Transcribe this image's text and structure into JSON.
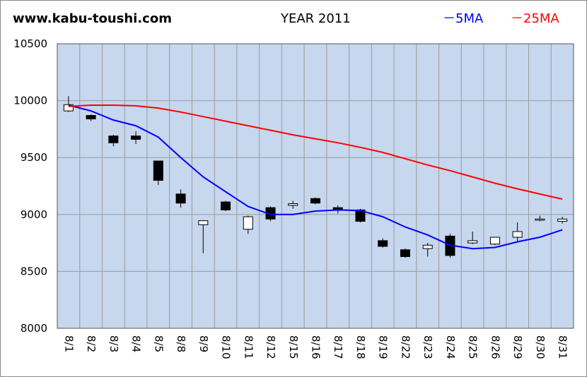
{
  "header": {
    "site": "www.kabu-toushi.com",
    "year_title": "YEAR 2011",
    "legend_5ma": "－5MA",
    "legend_25ma": "－25MA"
  },
  "colors": {
    "plot_bg": "#c6d7ee",
    "grid": "#9a9a9a",
    "ma5": "#0000ff",
    "ma25": "#ff0000",
    "up_body": "#ffffff",
    "down_body": "#000000"
  },
  "chart_data": {
    "type": "candlestick",
    "title": "YEAR 2011",
    "ylim": [
      8000,
      10500
    ],
    "yticks": [
      8000,
      8500,
      9000,
      9500,
      10000,
      10500
    ],
    "categories": [
      "8/1",
      "8/2",
      "8/3",
      "8/4",
      "8/5",
      "8/8",
      "8/9",
      "8/10",
      "8/11",
      "8/12",
      "8/15",
      "8/16",
      "8/17",
      "8/18",
      "8/19",
      "8/22",
      "8/23",
      "8/24",
      "8/25",
      "8/26",
      "8/29",
      "8/30",
      "8/31"
    ],
    "ohlc": [
      {
        "open": 9910,
        "high": 10040,
        "low": 9900,
        "close": 9965
      },
      {
        "open": 9870,
        "high": 9880,
        "low": 9820,
        "close": 9840
      },
      {
        "open": 9690,
        "high": 9700,
        "low": 9600,
        "close": 9630
      },
      {
        "open": 9690,
        "high": 9730,
        "low": 9620,
        "close": 9660
      },
      {
        "open": 9470,
        "high": 9470,
        "low": 9260,
        "close": 9300
      },
      {
        "open": 9180,
        "high": 9220,
        "low": 9060,
        "close": 9100
      },
      {
        "open": 8910,
        "high": 8950,
        "low": 8660,
        "close": 8945
      },
      {
        "open": 9110,
        "high": 9120,
        "low": 9030,
        "close": 9040
      },
      {
        "open": 8870,
        "high": 8990,
        "low": 8830,
        "close": 8980
      },
      {
        "open": 9060,
        "high": 9070,
        "low": 8940,
        "close": 8960
      },
      {
        "open": 9080,
        "high": 9120,
        "low": 9050,
        "close": 9095
      },
      {
        "open": 9140,
        "high": 9150,
        "low": 9090,
        "close": 9100
      },
      {
        "open": 9060,
        "high": 9080,
        "low": 9010,
        "close": 9040
      },
      {
        "open": 9040,
        "high": 9050,
        "low": 8930,
        "close": 8940
      },
      {
        "open": 8770,
        "high": 8790,
        "low": 8710,
        "close": 8720
      },
      {
        "open": 8690,
        "high": 8700,
        "low": 8620,
        "close": 8630
      },
      {
        "open": 8700,
        "high": 8750,
        "low": 8630,
        "close": 8730
      },
      {
        "open": 8810,
        "high": 8830,
        "low": 8620,
        "close": 8640
      },
      {
        "open": 8750,
        "high": 8850,
        "low": 8740,
        "close": 8770
      },
      {
        "open": 8740,
        "high": 8800,
        "low": 8730,
        "close": 8800
      },
      {
        "open": 8800,
        "high": 8930,
        "low": 8760,
        "close": 8850
      },
      {
        "open": 8950,
        "high": 8990,
        "low": 8940,
        "close": 8960
      },
      {
        "open": 8940,
        "high": 8980,
        "low": 8920,
        "close": 8960
      }
    ],
    "series": [
      {
        "name": "5MA",
        "color": "#0000ff",
        "values": [
          9960,
          9910,
          9830,
          9780,
          9680,
          9500,
          9330,
          9200,
          9070,
          9000,
          9000,
          9030,
          9040,
          9035,
          8980,
          8890,
          8820,
          8730,
          8700,
          8710,
          8760,
          8800,
          8865
        ]
      },
      {
        "name": "25MA",
        "color": "#ff0000",
        "values": [
          9950,
          9960,
          9960,
          9955,
          9935,
          9900,
          9860,
          9820,
          9780,
          9740,
          9700,
          9665,
          9630,
          9590,
          9545,
          9490,
          9435,
          9385,
          9330,
          9275,
          9225,
          9180,
          9135
        ]
      }
    ],
    "grid": true,
    "legend_position": "top-right"
  }
}
